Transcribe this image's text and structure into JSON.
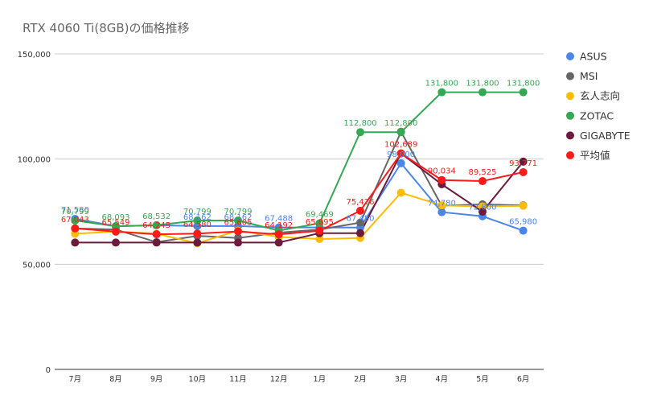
{
  "chart_data": {
    "type": "line",
    "title": "RTX 4060 Ti(8GB)の価格推移",
    "categories": [
      "7月",
      "8月",
      "9月",
      "10月",
      "11月",
      "12月",
      "1月",
      "2月",
      "3月",
      "4月",
      "5月",
      "6月"
    ],
    "ylim": [
      0,
      150000
    ],
    "yticks": [
      "0",
      "50,000",
      "100,000",
      "150,000"
    ],
    "grid": true,
    "legend_position": "right",
    "series": [
      {
        "name": "ASUS",
        "color": "#4a86e8",
        "values": [
          71580,
          68093,
          68532,
          68162,
          68162,
          67488,
          67500,
          67480,
          98000,
          74780,
          72800,
          65980
        ],
        "labels": [
          "71,580",
          "",
          "",
          "68,162",
          "68,162",
          "67,488",
          "",
          "67,480",
          "98,000",
          "74,780",
          "72,800",
          "65,980"
        ]
      },
      {
        "name": "MSI",
        "color": "#666666",
        "values": [
          67000,
          66500,
          60500,
          63500,
          62500,
          65000,
          66500,
          69800,
          113000,
          77800,
          78500,
          78000
        ],
        "labels": [
          "",
          "",
          "",
          "",
          "",
          "",
          "",
          "",
          "",
          "",
          "",
          ""
        ]
      },
      {
        "name": "玄人志向",
        "color": "#fbbc04",
        "values": [
          64500,
          65500,
          64500,
          60000,
          66000,
          63000,
          62000,
          62500,
          84000,
          78000,
          77500,
          77800
        ],
        "labels": [
          "",
          "",
          "",
          "",
          "",
          "",
          "",
          "",
          "",
          "",
          "",
          ""
        ]
      },
      {
        "name": "ZOTAC",
        "color": "#34a853",
        "values": [
          70799,
          68093,
          68532,
          70799,
          70799,
          66000,
          69469,
          112800,
          112800,
          131800,
          131800,
          131800
        ],
        "labels": [
          "70,799",
          "68,093",
          "68,532",
          "70,799",
          "70,799",
          "",
          "69,469",
          "112,800",
          "112,800",
          "131,800",
          "131,800",
          "131,800"
        ]
      },
      {
        "name": "GIGABYTE",
        "color": "#6d1b3c",
        "values": [
          60300,
          60300,
          60300,
          60300,
          60300,
          60300,
          64800,
          64800,
          102689,
          88000,
          75000,
          98800
        ],
        "labels": [
          "",
          "",
          "",
          "",
          "",
          "",
          "",
          "",
          "",
          "",
          "",
          ""
        ]
      },
      {
        "name": "平均値",
        "color": "#ff1a1a",
        "values": [
          67043,
          65549,
          64245,
          64580,
          65605,
          64192,
          65895,
          75426,
          102689,
          90034,
          89525,
          93771
        ],
        "labels": [
          "67,043",
          "65,549",
          "64,245",
          "64,580",
          "65,605",
          "64,192",
          "65,895",
          "75,426",
          "102,689",
          "90,034",
          "89,525",
          "93,771"
        ]
      }
    ]
  }
}
